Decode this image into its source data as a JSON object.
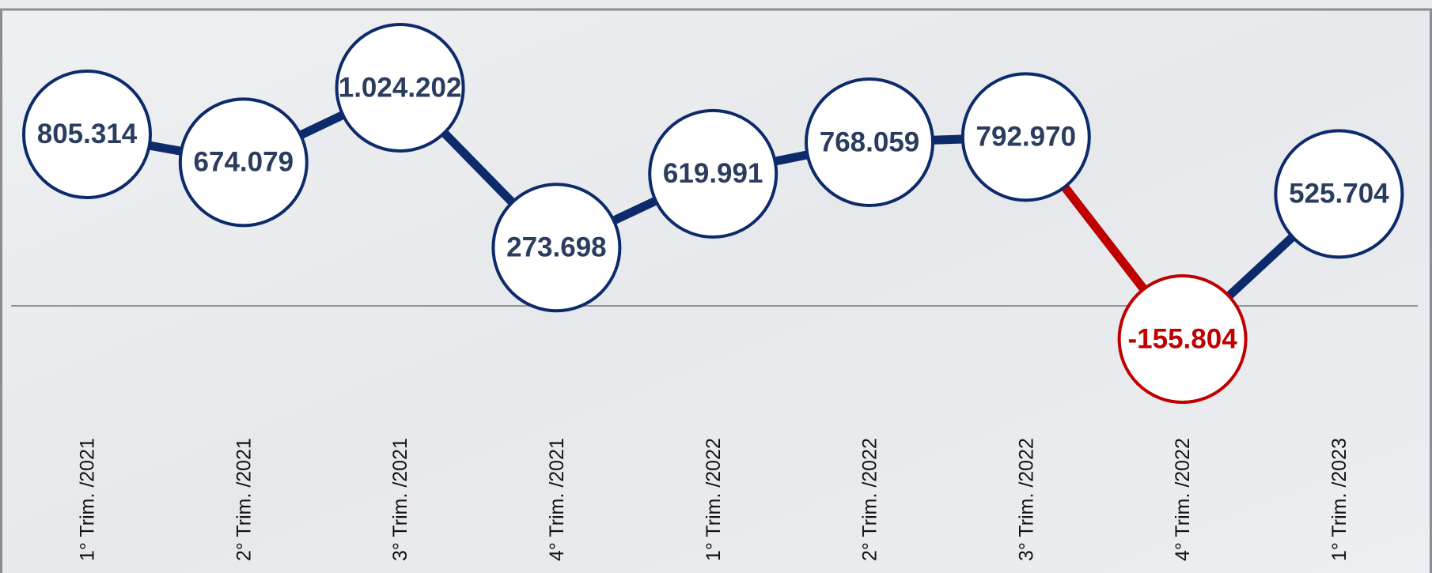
{
  "chart_data": {
    "type": "line",
    "categories": [
      "1° Trim. /2021",
      "2° Trim. /2021",
      "3° Trim. /2021",
      "4° Trim. /2021",
      "1° Trim. /2022",
      "2° Trim. /2022",
      "3° Trim. /2022",
      "4° Trim. /2022",
      "1° Trim. /2023"
    ],
    "values": [
      805314,
      674079,
      1024202,
      273698,
      619991,
      768059,
      792970,
      -155804,
      525704
    ],
    "value_labels": [
      "805.314",
      "674.079",
      "1.024.202",
      "273.698",
      "619.991",
      "768.059",
      "792.970",
      "-155.804",
      "525.704"
    ],
    "color": "#0d2a6b",
    "negative_color": "#c00000"
  }
}
